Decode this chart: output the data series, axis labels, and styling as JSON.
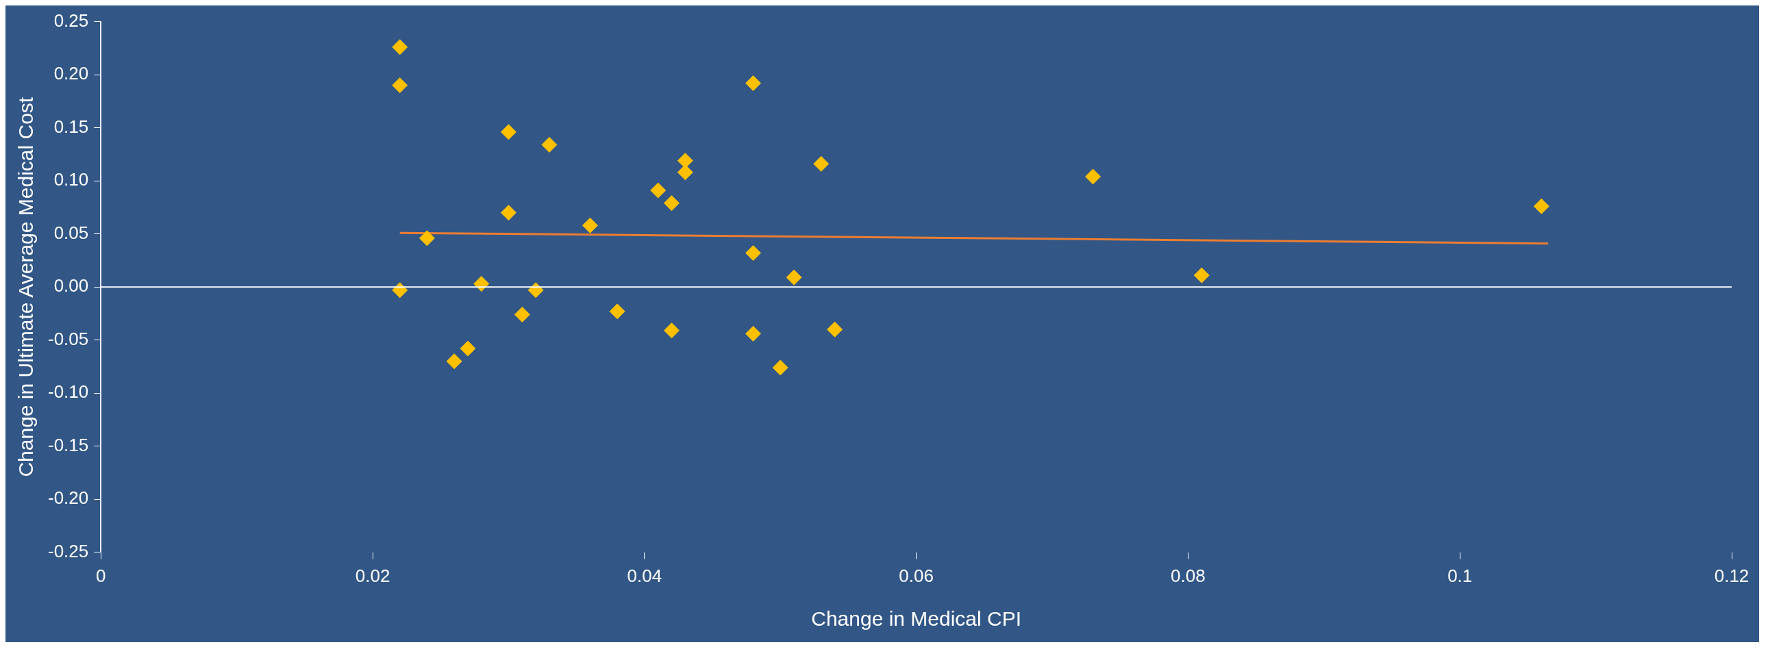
{
  "chart_data": {
    "type": "scatter",
    "xlabel": "Change in Medical CPI",
    "ylabel": "Change in Ultimate Average Medical Cost",
    "xlim": [
      0,
      0.12
    ],
    "xticks": [
      0,
      0.02,
      0.04,
      0.06,
      0.08,
      0.1,
      0.12
    ],
    "ylim": [
      -0.25,
      0.25
    ],
    "yticks": [
      {
        "value": -0.25,
        "label": "-0.25"
      },
      {
        "value": -0.2,
        "label": "-0.20"
      },
      {
        "value": -0.15,
        "label": "-0.15"
      },
      {
        "value": -0.1,
        "label": "-0.10"
      },
      {
        "value": -0.05,
        "label": "-0.05"
      },
      {
        "value": 0,
        "label": "0.00"
      },
      {
        "value": 0.05,
        "label": "0.05"
      },
      {
        "value": 0.1,
        "label": "0.10"
      },
      {
        "value": 0.15,
        "label": "0.15"
      },
      {
        "value": 0.2,
        "label": "0.20"
      },
      {
        "value": 0.25,
        "label": "0.25"
      }
    ],
    "grid": false,
    "legend": false,
    "marker": "diamond",
    "ref_lines": [
      {
        "axis": "y",
        "value": 0,
        "color": "#ffffff"
      }
    ],
    "series": [
      {
        "type": "scatter",
        "color": "#ffc000",
        "x": [
          0.022,
          0.022,
          0.022,
          0.024,
          0.026,
          0.027,
          0.028,
          0.03,
          0.03,
          0.031,
          0.032,
          0.033,
          0.036,
          0.038,
          0.041,
          0.042,
          0.042,
          0.043,
          0.043,
          0.048,
          0.048,
          0.048,
          0.05,
          0.051,
          0.053,
          0.054,
          0.073,
          0.081,
          0.106
        ],
        "values": [
          0.226,
          0.19,
          -0.003,
          0.046,
          -0.07,
          -0.058,
          0.003,
          0.146,
          0.07,
          -0.026,
          -0.003,
          0.134,
          0.058,
          -0.023,
          0.091,
          0.079,
          -0.041,
          0.119,
          0.108,
          0.192,
          0.032,
          -0.044,
          -0.076,
          0.009,
          0.116,
          -0.04,
          0.104,
          0.011,
          0.076
        ]
      },
      {
        "type": "line",
        "color": "#ed7d31",
        "x": [
          0.022,
          0.1065
        ],
        "values": [
          0.051,
          0.041
        ],
        "marker": "none"
      }
    ]
  }
}
